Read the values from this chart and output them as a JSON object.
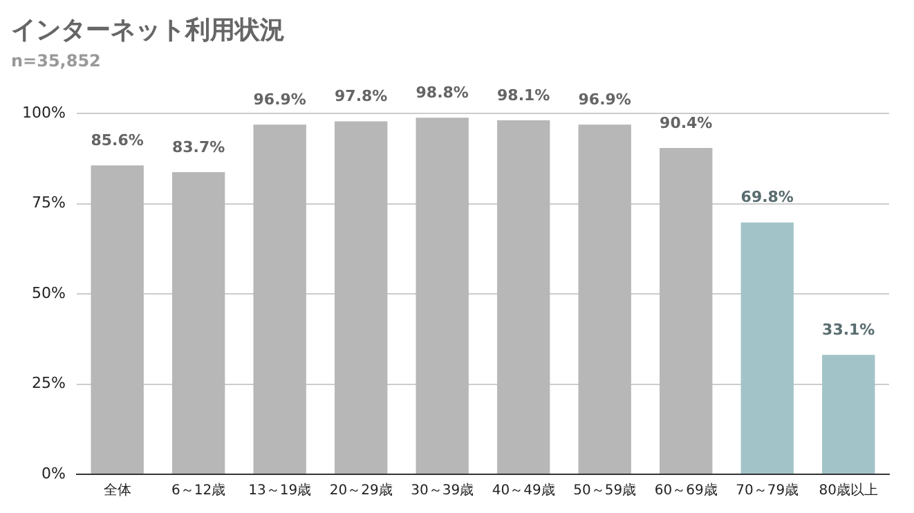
{
  "chart_data": {
    "type": "bar",
    "title": "インターネット利用状況",
    "subtitle": "n=35,852",
    "categories": [
      "全体",
      "6～12歳",
      "13～19歳",
      "20～29歳",
      "30～39歳",
      "40～49歳",
      "50～59歳",
      "60～69歳",
      "70～79歳",
      "80歳以上"
    ],
    "values": [
      85.6,
      83.7,
      96.9,
      97.8,
      98.8,
      98.1,
      96.9,
      90.4,
      69.8,
      33.1
    ],
    "value_labels": [
      "85.6%",
      "83.7%",
      "96.9%",
      "97.8%",
      "98.8%",
      "98.1%",
      "96.9%",
      "90.4%",
      "69.8%",
      "33.1%"
    ],
    "colors": [
      "#b7b7b7",
      "#b7b7b7",
      "#b7b7b7",
      "#b7b7b7",
      "#b7b7b7",
      "#b7b7b7",
      "#b7b7b7",
      "#b7b7b7",
      "#a2c4c9",
      "#a2c4c9"
    ],
    "ylim": [
      0,
      100
    ],
    "yticks": [
      {
        "value": 0,
        "label": "0%"
      },
      {
        "value": 25,
        "label": "25%"
      },
      {
        "value": 50,
        "label": "50%"
      },
      {
        "value": 75,
        "label": "75%"
      },
      {
        "value": 100,
        "label": "100%"
      }
    ],
    "grid": "y",
    "legend": false
  }
}
